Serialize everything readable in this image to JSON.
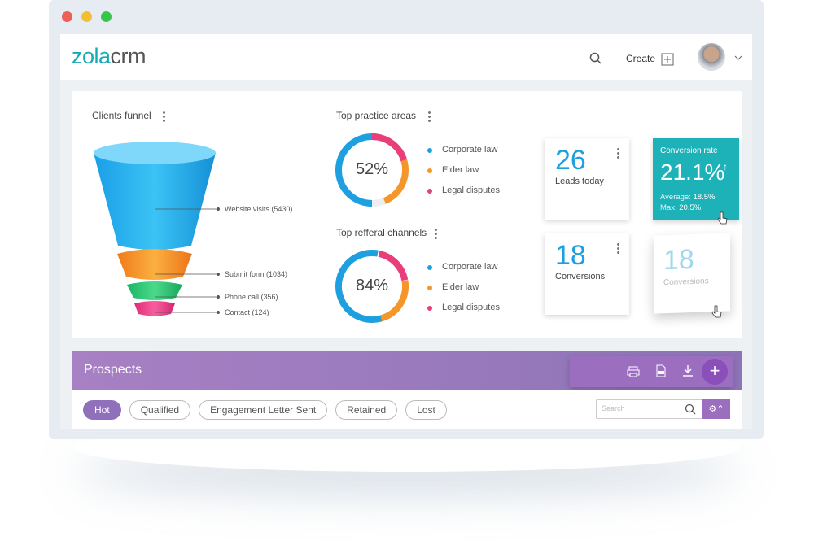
{
  "header": {
    "logo_brand": "zola",
    "logo_product": "crm",
    "create": "Create"
  },
  "clients_funnel": {
    "title": "Clients funnel",
    "stages": [
      "Website visits (5430)",
      "Submit form (1034)",
      "Phone call (356)",
      "Contact (124)"
    ]
  },
  "practice_areas": {
    "title": "Top practice areas",
    "center_label": "52%",
    "legend": [
      "Corporate law",
      "Elder law",
      "Legal disputes"
    ]
  },
  "referral_channels": {
    "title": "Top refferal channels",
    "center_label": "84%",
    "legend": [
      "Corporate law",
      "Elder law",
      "Legal disputes"
    ]
  },
  "cards": {
    "leads": {
      "value": "26",
      "label": "Leads today"
    },
    "conversions": {
      "value": "18",
      "label": "Conversions"
    },
    "conversion_rate": {
      "title": "Conversion rate",
      "value": "21.1%",
      "average_label": "Average:",
      "average": "18.5%",
      "max_label": "Max:",
      "max": "20.5%"
    },
    "ghost": {
      "value": "18",
      "label": "Conversions"
    }
  },
  "prospects": {
    "title": "Prospects",
    "filters": [
      "Hot",
      "Qualified",
      "Engagement Letter Sent",
      "Retained",
      "Lost"
    ],
    "search_placeholder": "Search"
  }
}
